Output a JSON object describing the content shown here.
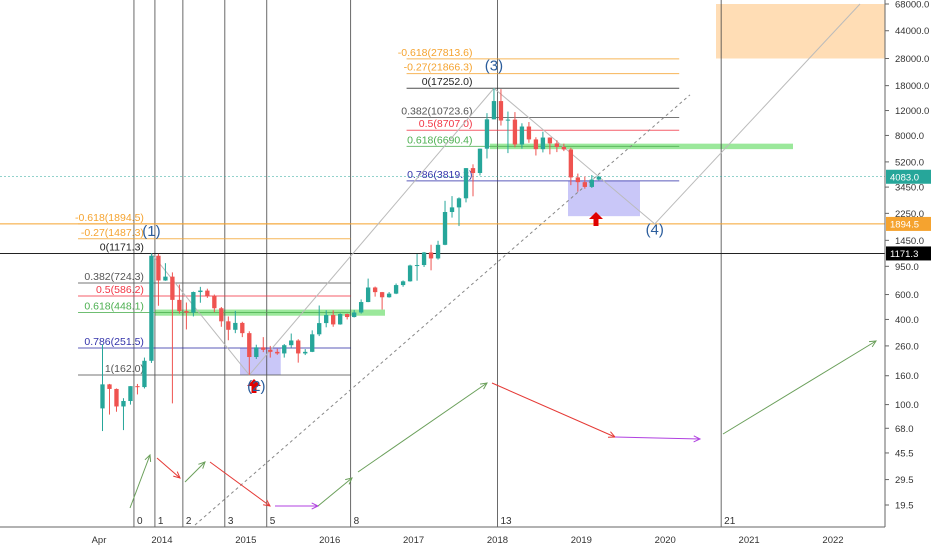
{
  "chart_data": {
    "type": "candlestick",
    "title": "",
    "xlabel": "",
    "ylabel": "",
    "y_scale": "log",
    "ylim": [
      15,
      68000
    ],
    "xlim": [
      "2013-03",
      "2022-12"
    ],
    "x_tick_labels": [
      "Apr",
      "2014",
      "2015",
      "2016",
      "2017",
      "2018",
      "2019",
      "2020",
      "2021",
      "2022"
    ],
    "y_tick_labels": [
      {
        "v": 68000,
        "t": "68000.0"
      },
      {
        "v": 44000,
        "t": "44000.0"
      },
      {
        "v": 28000,
        "t": "28000.0"
      },
      {
        "v": 18000,
        "t": "18000.0"
      },
      {
        "v": 12000,
        "t": "12000.0"
      },
      {
        "v": 8000,
        "t": "8000.0"
      },
      {
        "v": 5200,
        "t": "5200.0"
      },
      {
        "v": 3450,
        "t": "3450.0"
      },
      {
        "v": 2250,
        "t": "2250.0"
      },
      {
        "v": 1450,
        "t": "1450.0"
      },
      {
        "v": 950,
        "t": "950.0"
      },
      {
        "v": 600,
        "t": "600.0"
      },
      {
        "v": 400,
        "t": "400.0"
      },
      {
        "v": 260,
        "t": "260.0"
      },
      {
        "v": 160,
        "t": "160.0"
      },
      {
        "v": 100,
        "t": "100.0"
      },
      {
        "v": 68,
        "t": "68.0"
      },
      {
        "v": 45.5,
        "t": "45.5"
      },
      {
        "v": 29.5,
        "t": "29.5"
      },
      {
        "v": 19.5,
        "t": "19.5"
      }
    ],
    "price_badges": [
      {
        "value": 4083.0,
        "text": "4083.0",
        "color": "#26a69a"
      },
      {
        "value": 1894.5,
        "text": "1894.5",
        "color": "#f5a32f"
      },
      {
        "value": 1171.3,
        "text": "1171.3",
        "color": "#000000"
      }
    ],
    "candles": [
      {
        "d": "2013-04",
        "o": 94,
        "h": 266,
        "l": 65,
        "c": 139
      },
      {
        "d": "2013-05",
        "o": 139,
        "h": 140,
        "l": 85,
        "c": 129
      },
      {
        "d": "2013-06",
        "o": 129,
        "h": 130,
        "l": 89,
        "c": 97
      },
      {
        "d": "2013-07",
        "o": 97,
        "h": 111,
        "l": 66,
        "c": 106
      },
      {
        "d": "2013-08",
        "o": 106,
        "h": 135,
        "l": 100,
        "c": 135
      },
      {
        "d": "2013-09",
        "o": 135,
        "h": 140,
        "l": 118,
        "c": 133
      },
      {
        "d": "2013-10",
        "o": 133,
        "h": 215,
        "l": 130,
        "c": 204
      },
      {
        "d": "2013-11",
        "o": 204,
        "h": 1171,
        "l": 197,
        "c": 1128
      },
      {
        "d": "2013-12",
        "o": 1128,
        "h": 1165,
        "l": 500,
        "c": 754
      },
      {
        "d": "2014-01",
        "o": 754,
        "h": 1000,
        "l": 750,
        "c": 803
      },
      {
        "d": "2014-02",
        "o": 803,
        "h": 860,
        "l": 102,
        "c": 550
      },
      {
        "d": "2014-03",
        "o": 550,
        "h": 706,
        "l": 440,
        "c": 458
      },
      {
        "d": "2014-04",
        "o": 458,
        "h": 527,
        "l": 340,
        "c": 447
      },
      {
        "d": "2014-05",
        "o": 447,
        "h": 630,
        "l": 420,
        "c": 625
      },
      {
        "d": "2014-06",
        "o": 625,
        "h": 680,
        "l": 525,
        "c": 640
      },
      {
        "d": "2014-07",
        "o": 640,
        "h": 660,
        "l": 568,
        "c": 586
      },
      {
        "d": "2014-08",
        "o": 586,
        "h": 600,
        "l": 450,
        "c": 480
      },
      {
        "d": "2014-09",
        "o": 480,
        "h": 490,
        "l": 355,
        "c": 388
      },
      {
        "d": "2014-10",
        "o": 388,
        "h": 420,
        "l": 285,
        "c": 338
      },
      {
        "d": "2014-11",
        "o": 338,
        "h": 460,
        "l": 320,
        "c": 378
      },
      {
        "d": "2014-12",
        "o": 378,
        "h": 385,
        "l": 300,
        "c": 320
      },
      {
        "d": "2015-01",
        "o": 320,
        "h": 330,
        "l": 162,
        "c": 217
      },
      {
        "d": "2015-02",
        "o": 217,
        "h": 265,
        "l": 210,
        "c": 254
      },
      {
        "d": "2015-03",
        "o": 254,
        "h": 300,
        "l": 235,
        "c": 244
      },
      {
        "d": "2015-04",
        "o": 244,
        "h": 260,
        "l": 215,
        "c": 236
      },
      {
        "d": "2015-05",
        "o": 236,
        "h": 248,
        "l": 225,
        "c": 230
      },
      {
        "d": "2015-06",
        "o": 230,
        "h": 268,
        "l": 215,
        "c": 263
      },
      {
        "d": "2015-07",
        "o": 263,
        "h": 318,
        "l": 253,
        "c": 284
      },
      {
        "d": "2015-08",
        "o": 284,
        "h": 290,
        "l": 198,
        "c": 230
      },
      {
        "d": "2015-09",
        "o": 230,
        "h": 247,
        "l": 224,
        "c": 236
      },
      {
        "d": "2015-10",
        "o": 236,
        "h": 335,
        "l": 235,
        "c": 314
      },
      {
        "d": "2015-11",
        "o": 314,
        "h": 502,
        "l": 305,
        "c": 377
      },
      {
        "d": "2015-12",
        "o": 377,
        "h": 465,
        "l": 352,
        "c": 430
      },
      {
        "d": "2016-01",
        "o": 430,
        "h": 464,
        "l": 355,
        "c": 369
      },
      {
        "d": "2016-02",
        "o": 369,
        "h": 443,
        "l": 367,
        "c": 437
      },
      {
        "d": "2016-03",
        "o": 437,
        "h": 440,
        "l": 400,
        "c": 416
      },
      {
        "d": "2016-04",
        "o": 416,
        "h": 467,
        "l": 413,
        "c": 448
      },
      {
        "d": "2016-05",
        "o": 448,
        "h": 554,
        "l": 440,
        "c": 531
      },
      {
        "d": "2016-06",
        "o": 531,
        "h": 778,
        "l": 530,
        "c": 673
      },
      {
        "d": "2016-07",
        "o": 673,
        "h": 683,
        "l": 580,
        "c": 624
      },
      {
        "d": "2016-08",
        "o": 624,
        "h": 626,
        "l": 470,
        "c": 574
      },
      {
        "d": "2016-09",
        "o": 574,
        "h": 625,
        "l": 570,
        "c": 609
      },
      {
        "d": "2016-10",
        "o": 609,
        "h": 718,
        "l": 604,
        "c": 700
      },
      {
        "d": "2016-11",
        "o": 700,
        "h": 755,
        "l": 681,
        "c": 744
      },
      {
        "d": "2016-12",
        "o": 744,
        "h": 975,
        "l": 740,
        "c": 963
      },
      {
        "d": "2017-01",
        "o": 963,
        "h": 1160,
        "l": 752,
        "c": 970
      },
      {
        "d": "2017-02",
        "o": 970,
        "h": 1200,
        "l": 940,
        "c": 1190
      },
      {
        "d": "2017-03",
        "o": 1190,
        "h": 1350,
        "l": 890,
        "c": 1080
      },
      {
        "d": "2017-04",
        "o": 1080,
        "h": 1440,
        "l": 1060,
        "c": 1348
      },
      {
        "d": "2017-05",
        "o": 1348,
        "h": 2760,
        "l": 1340,
        "c": 2300
      },
      {
        "d": "2017-06",
        "o": 2300,
        "h": 2980,
        "l": 2100,
        "c": 2480
      },
      {
        "d": "2017-07",
        "o": 2480,
        "h": 2920,
        "l": 1830,
        "c": 2875
      },
      {
        "d": "2017-08",
        "o": 2875,
        "h": 4700,
        "l": 2690,
        "c": 4700
      },
      {
        "d": "2017-09",
        "o": 4700,
        "h": 5000,
        "l": 2970,
        "c": 4340
      },
      {
        "d": "2017-10",
        "o": 4340,
        "h": 6450,
        "l": 4170,
        "c": 6450
      },
      {
        "d": "2017-11",
        "o": 6450,
        "h": 11500,
        "l": 5500,
        "c": 10400
      },
      {
        "d": "2017-12",
        "o": 10400,
        "h": 17252,
        "l": 10400,
        "c": 14000
      },
      {
        "d": "2018-01",
        "o": 14000,
        "h": 17000,
        "l": 9400,
        "c": 10200
      },
      {
        "d": "2018-02",
        "o": 10200,
        "h": 11800,
        "l": 6000,
        "c": 10350
      },
      {
        "d": "2018-03",
        "o": 10350,
        "h": 11700,
        "l": 6600,
        "c": 6900
      },
      {
        "d": "2018-04",
        "o": 6900,
        "h": 9750,
        "l": 6450,
        "c": 9250
      },
      {
        "d": "2018-05",
        "o": 9250,
        "h": 9950,
        "l": 7100,
        "c": 7500
      },
      {
        "d": "2018-06",
        "o": 7500,
        "h": 7770,
        "l": 5770,
        "c": 6400
      },
      {
        "d": "2018-07",
        "o": 6400,
        "h": 8500,
        "l": 6070,
        "c": 7730
      },
      {
        "d": "2018-08",
        "o": 7730,
        "h": 7750,
        "l": 5880,
        "c": 7030
      },
      {
        "d": "2018-09",
        "o": 7030,
        "h": 7400,
        "l": 6100,
        "c": 6630
      },
      {
        "d": "2018-10",
        "o": 6630,
        "h": 7000,
        "l": 6200,
        "c": 6370
      },
      {
        "d": "2018-11",
        "o": 6370,
        "h": 6550,
        "l": 3560,
        "c": 4040
      },
      {
        "d": "2018-12",
        "o": 4040,
        "h": 4300,
        "l": 3200,
        "c": 3740
      },
      {
        "d": "2019-01",
        "o": 3740,
        "h": 4100,
        "l": 3360,
        "c": 3460
      },
      {
        "d": "2019-02",
        "o": 3460,
        "h": 4200,
        "l": 3400,
        "c": 3900
      },
      {
        "d": "2019-03",
        "o": 3900,
        "h": 4150,
        "l": 3850,
        "c": 4083
      }
    ],
    "fib_sets": [
      {
        "x_start": "2013-01",
        "x_end": "2016-04",
        "label_x": "2013-11",
        "levels": [
          {
            "value": 1894.5,
            "label": "-0.618(1894.5)",
            "color": "#f5a32f"
          },
          {
            "value": 1487.3,
            "label": "-0.27(1487.3)",
            "color": "#f5a32f"
          },
          {
            "value": 1171.3,
            "label": "0(1171.3)",
            "color": "#222222"
          },
          {
            "value": 724.3,
            "label": "0.382(724.3)",
            "color": "#555555"
          },
          {
            "value": 586.2,
            "label": "0.5(586.2)",
            "color": "#f23645"
          },
          {
            "value": 448.1,
            "label": "0.618(448.1)",
            "color": "#4caf50"
          },
          {
            "value": 251.5,
            "label": "0.786(251.5)",
            "color": "#3333aa"
          },
          {
            "value": 162.0,
            "label": "1(162.0)",
            "color": "#555555"
          }
        ]
      },
      {
        "x_start": "2016-12",
        "x_end": "2020-03",
        "label_x": "2017-10",
        "levels": [
          {
            "value": 27813.6,
            "label": "-0.618(27813.6)",
            "color": "#f5a32f"
          },
          {
            "value": 21866.3,
            "label": "-0.27(21866.3)",
            "color": "#f5a32f"
          },
          {
            "value": 17252.0,
            "label": "0(17252.0)",
            "color": "#222222"
          },
          {
            "value": 10723.6,
            "label": "0.382(10723.6)",
            "color": "#555555"
          },
          {
            "value": 8707.0,
            "label": "0.5(8707.0)",
            "color": "#f23645"
          },
          {
            "value": 6690.4,
            "label": "0.618(6690.4)",
            "color": "#4caf50"
          },
          {
            "value": 3819.3,
            "label": "0.786(3819.3)",
            "color": "#3333aa"
          }
        ]
      }
    ],
    "wave_labels": [
      {
        "text": "(1)",
        "x": "2013-11",
        "y": 1560
      },
      {
        "text": "(2)",
        "x": "2015-02",
        "y": 125
      },
      {
        "text": "(3)",
        "x": "2017-12",
        "y": 23000
      },
      {
        "text": "(4)",
        "x": "2019-11",
        "y": 1600
      }
    ],
    "cycle_markers": [
      {
        "x": "2013-09",
        "label": "0"
      },
      {
        "x": "2013-12",
        "label": "1"
      },
      {
        "x": "2014-04",
        "label": "2"
      },
      {
        "x": "2014-10",
        "label": "3"
      },
      {
        "x": "2015-04",
        "label": "5"
      },
      {
        "x": "2016-04",
        "label": "8"
      },
      {
        "x": "2018-01",
        "label": "13"
      },
      {
        "x": "2020-09",
        "label": "21"
      }
    ]
  }
}
